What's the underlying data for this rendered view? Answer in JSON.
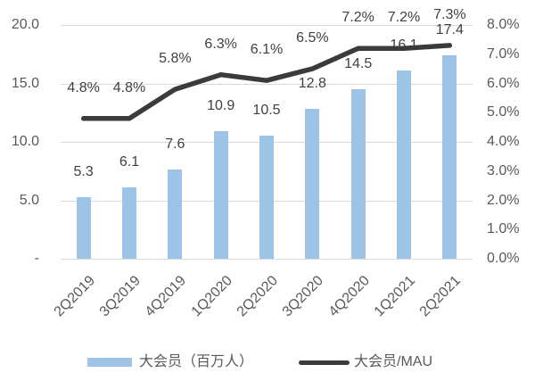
{
  "colors": {
    "background": "#ffffff",
    "bar": "#9dc3e6",
    "line": "#3b3b3b",
    "grid": "#d9d9d9",
    "axis_text": "#595959",
    "data_label_text": "#404040"
  },
  "chart_data": {
    "type": "bar",
    "subtype": "combo-bar-line",
    "categories": [
      "2Q2019",
      "3Q2019",
      "4Q2019",
      "1Q2020",
      "2Q2020",
      "3Q2020",
      "4Q2020",
      "1Q2021",
      "2Q2021"
    ],
    "series": [
      {
        "name": "大会员（百万人）",
        "type": "bar",
        "axis": "left",
        "values": [
          5.3,
          6.1,
          7.6,
          10.9,
          10.5,
          12.8,
          14.5,
          16.1,
          17.4
        ],
        "labels": [
          "5.3",
          "6.1",
          "7.6",
          "10.9",
          "10.5",
          "12.8",
          "14.5",
          "16.1",
          "17.4"
        ]
      },
      {
        "name": "大会员/MAU",
        "type": "line",
        "axis": "right",
        "values_percent": [
          4.8,
          4.8,
          5.8,
          6.3,
          6.1,
          6.5,
          7.2,
          7.2,
          7.3
        ],
        "labels": [
          "4.8%",
          "4.8%",
          "5.8%",
          "6.3%",
          "6.1%",
          "6.5%",
          "7.2%",
          "7.2%",
          "7.3%"
        ]
      }
    ],
    "left_axis": {
      "min": 0,
      "max": 20,
      "ticks": [
        "20.0",
        "15.0",
        "10.0",
        "5.0",
        "-"
      ]
    },
    "right_axis": {
      "min": 0,
      "max": 8,
      "ticks": [
        "8.0%",
        "7.0%",
        "6.0%",
        "5.0%",
        "4.0%",
        "3.0%",
        "2.0%",
        "1.0%",
        "0.0%"
      ]
    },
    "grid": true,
    "title": "",
    "legend_position": "bottom"
  },
  "legend": {
    "items": [
      {
        "label": "大会员（百万人）",
        "swatch": "bar"
      },
      {
        "label": "大会员/MAU",
        "swatch": "line"
      }
    ]
  }
}
